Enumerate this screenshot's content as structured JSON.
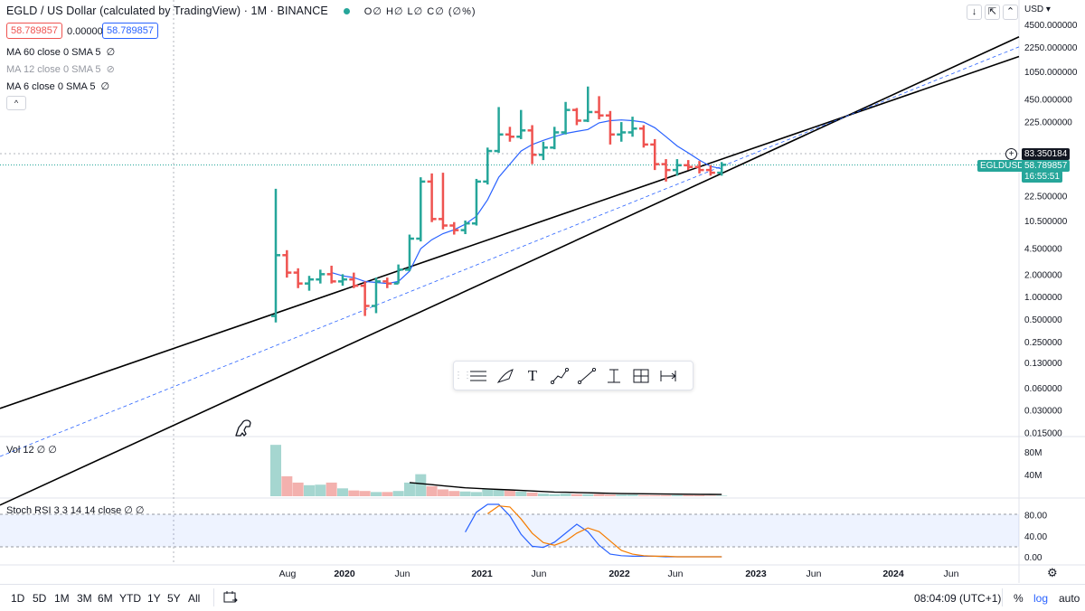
{
  "header": {
    "title": "EGLD / US Dollar (calculated by TradingView) · 1M · BINANCE",
    "ohlc": "O∅ H∅ L∅ C∅ (∅%)",
    "price_red": "58.789857",
    "price_change": "0.000000",
    "price_blue": "58.789857"
  },
  "indicators": [
    {
      "label": "MA 60 close 0 SMA 5",
      "icon": "eye-off-icon"
    },
    {
      "label": "MA 12 close 0 SMA 5",
      "icon": "eye-crossed-icon"
    },
    {
      "label": "MA 6 close 0 SMA 5",
      "icon": "eye-off-icon"
    }
  ],
  "collapse_label": "^",
  "top_right": {
    "currency": "USD",
    "buttons": [
      "↓",
      "⇱",
      "⌃"
    ]
  },
  "volume_legend": "Vol 12  ∅  ∅",
  "rsi_legend": "Stoch RSI 3 3 14 14 close  ∅  ∅",
  "price_labels": {
    "current": "83.350184",
    "symbol": "EGLDUSD",
    "last": "58.789857",
    "countdown": "16:55:51"
  },
  "bottom_bar": {
    "ranges": [
      "1D",
      "5D",
      "1M",
      "3M",
      "6M",
      "YTD",
      "1Y",
      "5Y",
      "All"
    ],
    "time": "08:04:09 (UTC+1)",
    "percent": "%",
    "log": "log",
    "auto": "auto"
  },
  "colors": {
    "up": "#26a69a",
    "down": "#ef5350",
    "ma": "#2962ff",
    "stoch_k": "#2962ff",
    "stoch_d": "#f57c00",
    "channel": "#000000"
  },
  "chart_data": {
    "type": "bar",
    "scale": "log",
    "y_ticks": [
      "4500.000000",
      "2250.000000",
      "1050.000000",
      "450.000000",
      "225.000000",
      "22.500000",
      "10.500000",
      "4.500000",
      "2.000000",
      "1.000000",
      "0.500000",
      "0.250000",
      "0.130000",
      "0.060000",
      "0.030000",
      "0.015000"
    ],
    "x_ticks": [
      "Aug",
      "2020",
      "Jun",
      "2021",
      "Jun",
      "2022",
      "Jun",
      "2023",
      "Jun",
      "2024",
      "Jun"
    ],
    "volume_ticks": [
      "80M",
      "40M"
    ],
    "rsi_ticks": [
      "80.00",
      "40.00",
      "0.00"
    ],
    "ohlc": [
      [
        0.55,
        28.0,
        0.45,
        3.6
      ],
      [
        3.6,
        4.2,
        1.8,
        2.1
      ],
      [
        2.1,
        2.4,
        1.3,
        1.5
      ],
      [
        1.5,
        1.9,
        1.2,
        1.7
      ],
      [
        1.7,
        2.3,
        1.5,
        2.0
      ],
      [
        2.0,
        2.6,
        1.5,
        1.6
      ],
      [
        1.6,
        2.0,
        1.4,
        1.7
      ],
      [
        1.7,
        2.1,
        1.3,
        1.4
      ],
      [
        1.4,
        1.6,
        0.55,
        0.75
      ],
      [
        0.75,
        1.8,
        0.6,
        1.6
      ],
      [
        1.6,
        1.8,
        1.3,
        1.5
      ],
      [
        1.5,
        2.7,
        1.5,
        2.3
      ],
      [
        2.3,
        6.8,
        2.2,
        6.0
      ],
      [
        6.0,
        40.0,
        5.5,
        35.0
      ],
      [
        35.0,
        45.0,
        10.0,
        11.0
      ],
      [
        11.0,
        46.0,
        8.0,
        9.0
      ],
      [
        9.0,
        10.0,
        6.8,
        7.8
      ],
      [
        7.8,
        10.5,
        6.9,
        9.6
      ],
      [
        9.6,
        38.0,
        9.0,
        35.0
      ],
      [
        35.0,
        100.0,
        32.0,
        90.0
      ],
      [
        90.0,
        350.0,
        85.0,
        150.0
      ],
      [
        150.0,
        190.0,
        120.0,
        140.0
      ],
      [
        140.0,
        320.0,
        130.0,
        170.0
      ],
      [
        170.0,
        200.0,
        60.0,
        80.0
      ],
      [
        80.0,
        120.0,
        68.0,
        100.0
      ],
      [
        100.0,
        190.0,
        95.0,
        160.0
      ],
      [
        160.0,
        410.0,
        150.0,
        320.0
      ],
      [
        320.0,
        340.0,
        200.0,
        230.0
      ],
      [
        230.0,
        660.0,
        220.0,
        300.0
      ],
      [
        300.0,
        490.0,
        240.0,
        270.0
      ],
      [
        270.0,
        310.0,
        110.0,
        150.0
      ],
      [
        150.0,
        220.0,
        120.0,
        160.0
      ],
      [
        160.0,
        260.0,
        140.0,
        180.0
      ],
      [
        180.0,
        200.0,
        100.0,
        110.0
      ],
      [
        110.0,
        130.0,
        50.0,
        60.0
      ],
      [
        60.0,
        70.0,
        35.0,
        50.0
      ],
      [
        50.0,
        70.0,
        42.0,
        58.0
      ],
      [
        58.0,
        68.0,
        50.0,
        55.0
      ],
      [
        55.0,
        66.0,
        45.0,
        50.0
      ],
      [
        50.0,
        58.0,
        42.0,
        46.0
      ],
      [
        46.0,
        64.0,
        42.0,
        58.79
      ]
    ],
    "ma": [
      null,
      null,
      null,
      null,
      null,
      2.1,
      1.9,
      1.8,
      1.6,
      1.55,
      1.5,
      1.6,
      2.2,
      4.4,
      5.8,
      7.0,
      7.9,
      9.4,
      12.0,
      20.0,
      40.0,
      60.0,
      90.0,
      110.0,
      125.0,
      140.0,
      155.0,
      165.0,
      175.0,
      215.0,
      230.0,
      235.0,
      230.0,
      220.0,
      185.0,
      140.0,
      105.0,
      85.0,
      68.0,
      56.0,
      52.0
    ],
    "volume": [
      98,
      38,
      26,
      21,
      22,
      26,
      15,
      11,
      10,
      8,
      8,
      10,
      26,
      42,
      19,
      13,
      10,
      9,
      8,
      13,
      13,
      11,
      9,
      7,
      5,
      4,
      5,
      4,
      4,
      4,
      3,
      3,
      3,
      2,
      2,
      2,
      2,
      2,
      2,
      1,
      1
    ],
    "volume_ma": [
      null,
      null,
      null,
      null,
      null,
      null,
      null,
      null,
      null,
      null,
      null,
      null,
      26,
      24,
      22,
      20,
      18,
      16,
      15,
      14,
      13,
      12,
      11,
      10,
      9,
      8,
      7.5,
      7,
      6.5,
      6,
      5.5,
      5,
      4.8,
      4.6,
      4.4,
      4.2,
      4.0,
      3.8,
      3.6,
      3.4,
      3.2
    ],
    "stoch_k": [
      null,
      null,
      null,
      null,
      null,
      null,
      null,
      null,
      null,
      null,
      null,
      null,
      null,
      null,
      null,
      null,
      null,
      47,
      85,
      100,
      100,
      78,
      43,
      20,
      18,
      28,
      45,
      62,
      48,
      22,
      5,
      2,
      1,
      1,
      1,
      0,
      0,
      0,
      0,
      0,
      0
    ],
    "stoch_d": [
      null,
      null,
      null,
      null,
      null,
      null,
      null,
      null,
      null,
      null,
      null,
      null,
      null,
      null,
      null,
      null,
      null,
      null,
      null,
      82,
      97,
      95,
      72,
      45,
      27,
      22,
      30,
      45,
      55,
      48,
      30,
      12,
      5,
      2,
      1,
      1,
      0,
      0,
      0,
      0,
      0
    ],
    "channel": {
      "upper": [
        [
          0,
          0.6
        ],
        [
          40,
          70
        ]
      ],
      "lower": [
        [
          0,
          0.08
        ],
        [
          40,
          45
        ]
      ],
      "mid": [
        [
          0,
          0.22
        ],
        [
          40,
          56
        ]
      ]
    },
    "overbought": 80,
    "oversold": 20
  }
}
